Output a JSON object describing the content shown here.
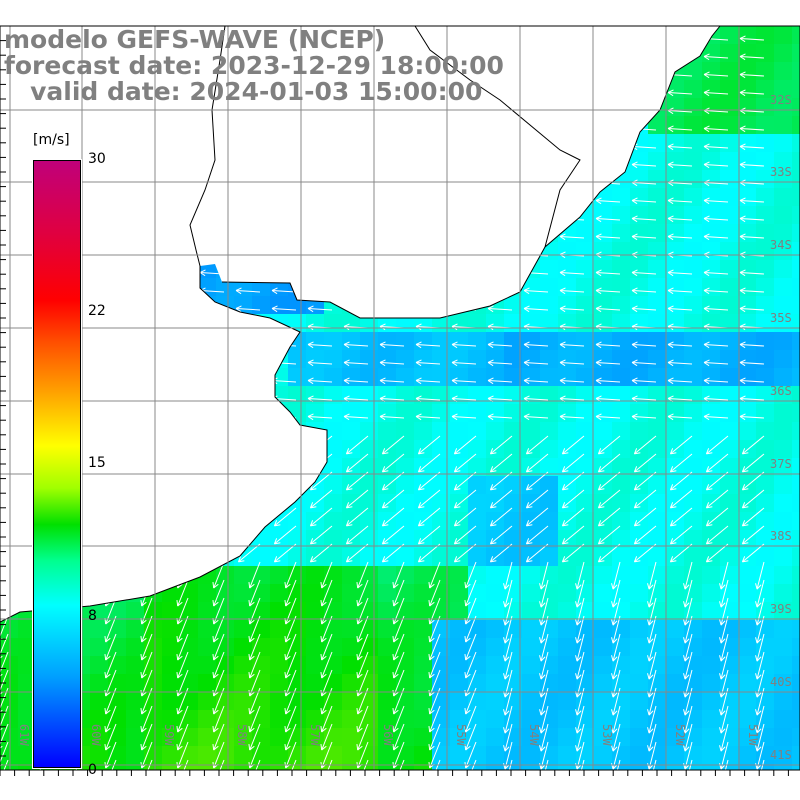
{
  "title": {
    "model": "modelo GEFS-WAVE (NCEP)",
    "forecast": "forecast date: 2023-12-29 18:00:00",
    "valid": "   valid date: 2024-01-03 15:00:00"
  },
  "colorbar": {
    "unit": "[m/s]",
    "ticks": [
      "30",
      "22",
      "15",
      "8",
      "0"
    ],
    "stops": [
      {
        "value": 0,
        "color": "#0000ff"
      },
      {
        "value": 8,
        "color": "#00ffff"
      },
      {
        "value": 12,
        "color": "#00e000"
      },
      {
        "value": 16,
        "color": "#ffff00"
      },
      {
        "value": 22,
        "color": "#ff0000"
      },
      {
        "value": 30,
        "color": "#c0007a"
      }
    ]
  },
  "axes": {
    "lon_labels": [
      "61W",
      "60W",
      "59W",
      "58W",
      "57W",
      "56W",
      "55W",
      "54W",
      "53W",
      "52W",
      "51W"
    ],
    "lat_labels": [
      "32S",
      "33S",
      "34S",
      "35S",
      "36S",
      "37S",
      "38S",
      "39S",
      "40S",
      "41S"
    ]
  },
  "colors": {
    "land": "#ffffff",
    "grid": "#888888",
    "coast": "#000000",
    "label": "#808080",
    "arrow": "#ffffff"
  }
}
